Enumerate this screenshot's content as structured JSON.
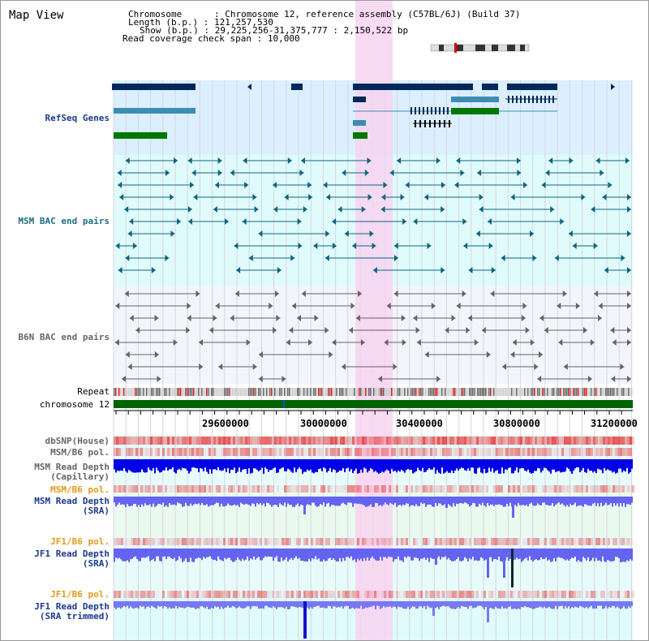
{
  "window_title": "Map View",
  "info": {
    "chromosome_key": "Chromosome",
    "chromosome_val": "Chromosome 12, reference assembly (C57BL/6J) (Build 37)",
    "length_key": "Length (b.p.)",
    "length_val": "121,257,530",
    "show_key": "Show (b.p.)",
    "show_val": "29,225,256-31,375,777 : 2,150,522 bp",
    "coverage_key": "Read coverage check span",
    "coverage_val": "10,000"
  },
  "tracks": {
    "refseq": "RefSeq Genes",
    "msm_bac": "MSM BAC end pairs",
    "b6n_bac": "B6N BAC end pairs",
    "repeat": "Repeat",
    "chromosome": "chromosome 12",
    "dbsnp": "dbSNP(House)",
    "msm_b6_pol_1": "MSM/B6 pol.",
    "msm_read_cap_1": "MSM Read Depth",
    "msm_read_cap_2": "(Capillary)",
    "msm_b6_pol_2": "MSM/B6 pol.",
    "msm_read_sra_1": "MSM Read Depth",
    "msm_read_sra_2": "(SRA)",
    "jf1_b6_pol_1": "JF1/B6 pol.",
    "jf1_read_sra_1": "JF1 Read Depth",
    "jf1_read_sra_2": "(SRA)",
    "jf1_b6_pol_2": "JF1/B6 pol.",
    "jf1_trim_1": "JF1 Read Depth",
    "jf1_trim_2": "(SRA trimmed)"
  },
  "axis": {
    "ticks": [
      "29600000",
      "30000000",
      "30400000",
      "30800000",
      "31200000"
    ]
  },
  "colors": {
    "highlight": "#f7d3f0",
    "refseq_bg": "#dcefff",
    "msm_bg": "#e0fbfb",
    "b6n_bg": "#f3f5fb",
    "gene_dark": "#00285a",
    "gene_mid": "#3c8cb4",
    "gene_green": "#007800",
    "bac_teal": "#0f6480",
    "bac_gray": "#646464",
    "depth_blue": "#0000e6",
    "depth_light": "#6464f0",
    "chrom_green": "#006400"
  }
}
